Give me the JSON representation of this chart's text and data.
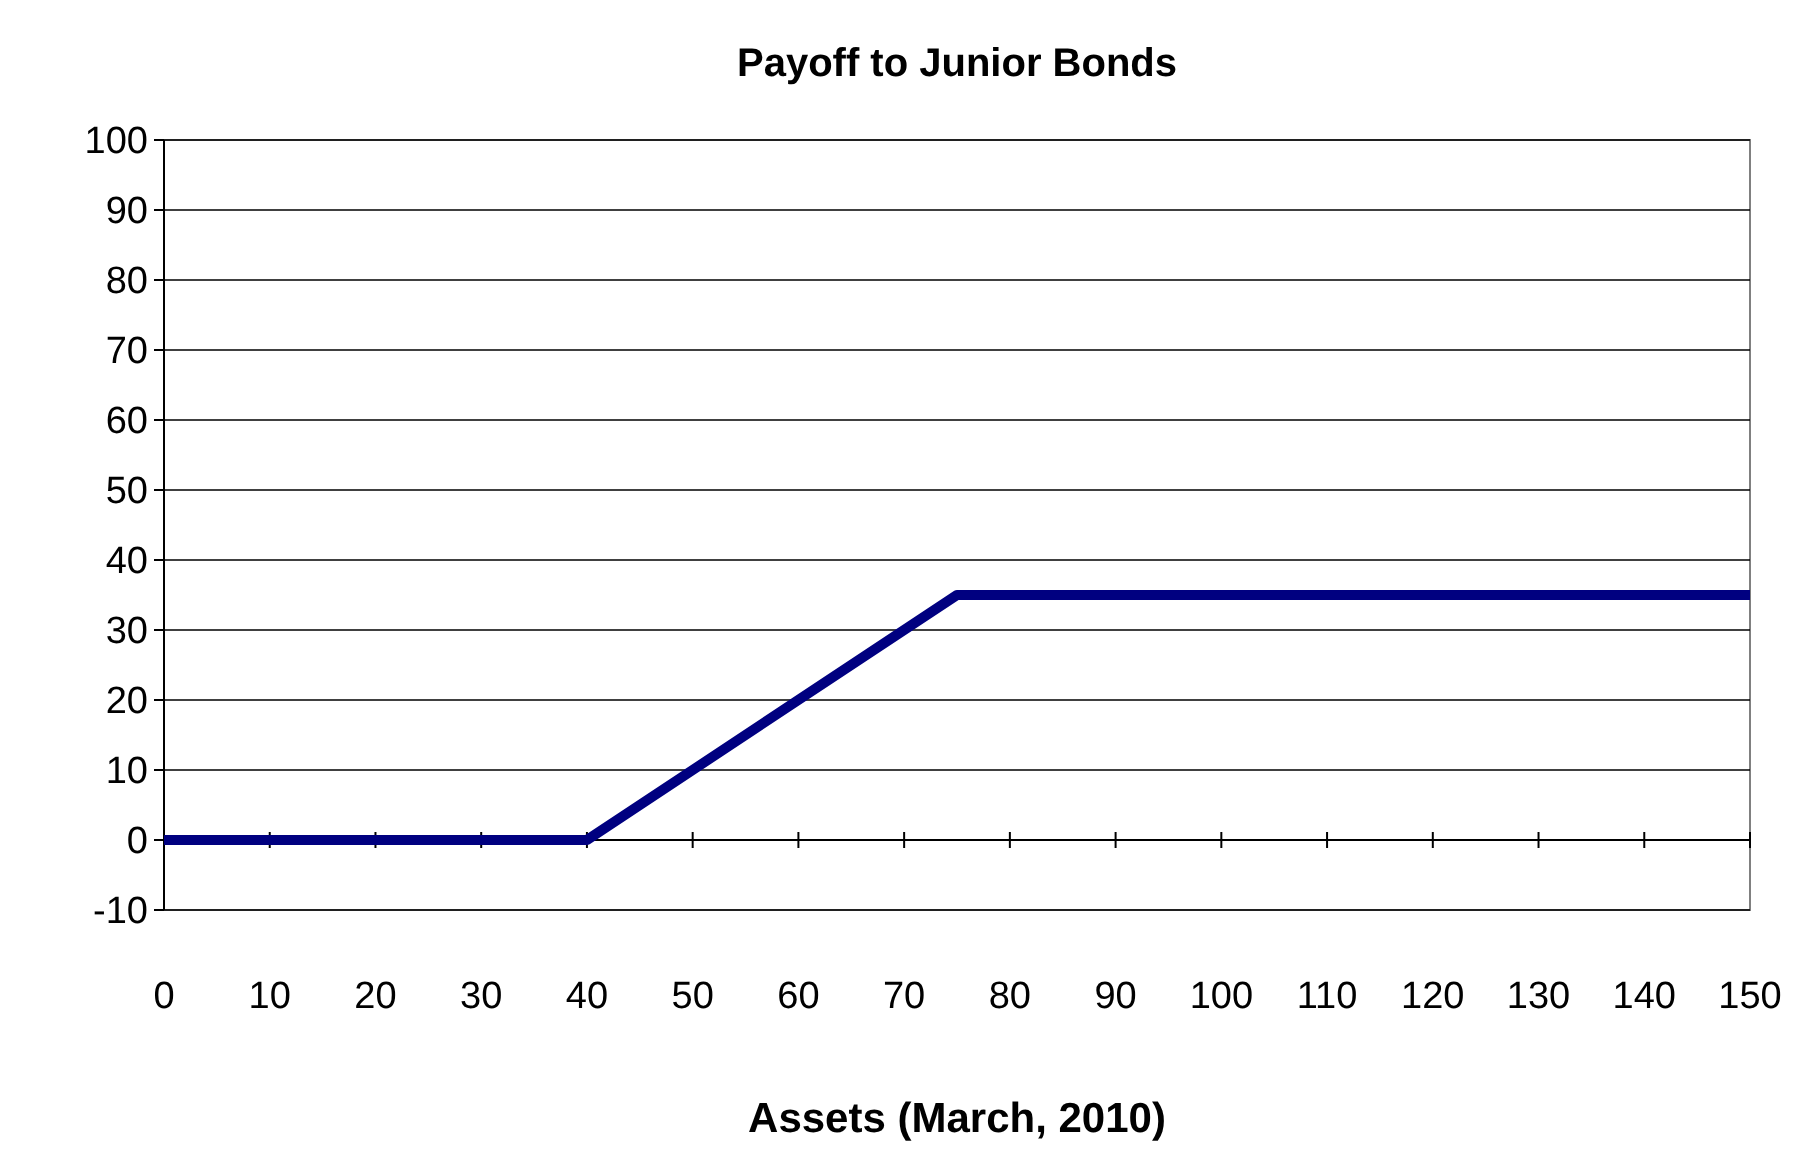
{
  "chart_data": {
    "type": "line",
    "title": "Payoff to Junior Bonds",
    "xlabel": "Assets (March, 2010)",
    "x": [
      0,
      40,
      75,
      150
    ],
    "series": [
      {
        "color": "#000080",
        "values": [
          0,
          0,
          35,
          35
        ]
      }
    ],
    "xlim": [
      0,
      150
    ],
    "xticks": [
      0,
      10,
      20,
      30,
      40,
      50,
      60,
      70,
      80,
      90,
      100,
      110,
      120,
      130,
      140,
      150
    ],
    "ylim": [
      -10,
      100
    ],
    "yticks": [
      -10,
      0,
      10,
      20,
      30,
      40,
      50,
      60,
      70,
      80,
      90,
      100
    ],
    "grid": "y",
    "marker": "none",
    "line_style": "solid"
  }
}
